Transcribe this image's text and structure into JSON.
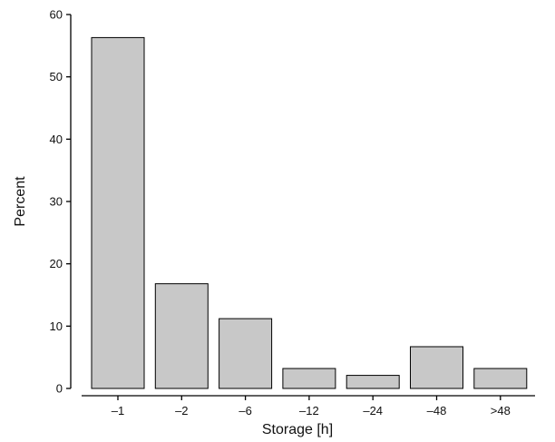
{
  "chart_data": {
    "type": "bar",
    "title": "",
    "xlabel": "Storage [h]",
    "ylabel": "Percent",
    "categories": [
      "–1",
      "–2",
      "–6",
      "–12",
      "–24",
      "–48",
      ">48"
    ],
    "values": [
      56.3,
      16.8,
      11.2,
      3.2,
      2.1,
      6.7,
      3.2
    ],
    "ylim": [
      0,
      60
    ],
    "yticks": [
      "0",
      "10",
      "20",
      "30",
      "40",
      "50",
      "60"
    ],
    "grid": false,
    "colors": {
      "bar_fill": "#c8c8c8",
      "bar_stroke": "#000000"
    }
  }
}
